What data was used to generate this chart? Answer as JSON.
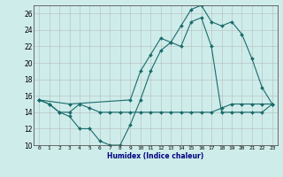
{
  "xlabel": "Humidex (Indice chaleur)",
  "bg_color": "#ceecea",
  "grid_color": "#b0b0b0",
  "line_color": "#1a6b6b",
  "xlim": [
    -0.5,
    23.5
  ],
  "ylim": [
    10,
    27
  ],
  "xticks": [
    0,
    1,
    2,
    3,
    4,
    5,
    6,
    7,
    8,
    9,
    10,
    11,
    12,
    13,
    14,
    15,
    16,
    17,
    18,
    19,
    20,
    21,
    22,
    23
  ],
  "yticks": [
    10,
    12,
    14,
    16,
    18,
    20,
    22,
    24,
    26
  ],
  "series1_x": [
    0,
    1,
    2,
    3,
    4,
    5,
    6,
    7,
    8,
    9,
    10,
    11,
    12,
    13,
    14,
    15,
    16,
    17,
    18,
    19,
    20,
    21,
    22,
    23
  ],
  "series1_y": [
    15.5,
    15,
    14,
    13.5,
    12,
    12,
    10.5,
    10,
    10,
    12.5,
    15.5,
    19,
    21.5,
    22.5,
    22,
    25,
    25.5,
    22,
    14,
    14,
    14,
    14,
    14,
    15
  ],
  "series2_x": [
    0,
    1,
    2,
    3,
    4,
    5,
    6,
    7,
    8,
    9,
    10,
    11,
    12,
    13,
    14,
    15,
    16,
    17,
    18,
    19,
    20,
    21,
    22,
    23
  ],
  "series2_y": [
    15.5,
    15,
    14,
    14,
    15,
    14.5,
    14,
    14,
    14,
    14,
    14,
    14,
    14,
    14,
    14,
    14,
    14,
    14,
    14.5,
    15,
    15,
    15,
    15,
    15
  ],
  "series3_x": [
    0,
    3,
    9,
    10,
    11,
    12,
    13,
    14,
    15,
    16,
    17,
    18,
    19,
    20,
    21,
    22,
    23
  ],
  "series3_y": [
    15.5,
    15,
    15.5,
    19,
    21,
    23,
    22.5,
    24.5,
    26.5,
    27,
    25,
    24.5,
    25,
    23.5,
    20.5,
    17,
    15
  ]
}
